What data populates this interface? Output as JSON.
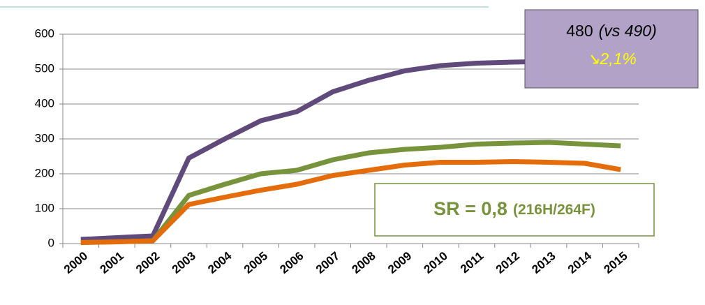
{
  "chart_data": {
    "type": "line",
    "categories": [
      "2000",
      "2001",
      "2002",
      "2003",
      "2004",
      "2005",
      "2006",
      "2007",
      "2008",
      "2009",
      "2010",
      "2011",
      "2012",
      "2013",
      "2014",
      "2015"
    ],
    "series": [
      {
        "color": "#604a7b",
        "values": [
          12,
          17,
          22,
          245,
          300,
          352,
          378,
          435,
          468,
          495,
          510,
          517,
          520,
          522,
          523,
          524
        ]
      },
      {
        "color": "#77933c",
        "values": [
          3,
          5,
          8,
          138,
          170,
          200,
          210,
          240,
          260,
          270,
          276,
          285,
          288,
          290,
          285,
          280
        ]
      },
      {
        "color": "#e46c0a",
        "values": [
          3,
          5,
          8,
          112,
          133,
          153,
          170,
          195,
          210,
          225,
          233,
          233,
          235,
          233,
          230,
          212
        ]
      }
    ],
    "ylim": [
      0,
      600
    ],
    "yticks": [
      0,
      100,
      200,
      300,
      400,
      500,
      600
    ],
    "grid": true,
    "annotations": [
      "480",
      "(vs 490)",
      "↘2,1%",
      "SR = 0,8",
      "(216H/264F)"
    ]
  }
}
